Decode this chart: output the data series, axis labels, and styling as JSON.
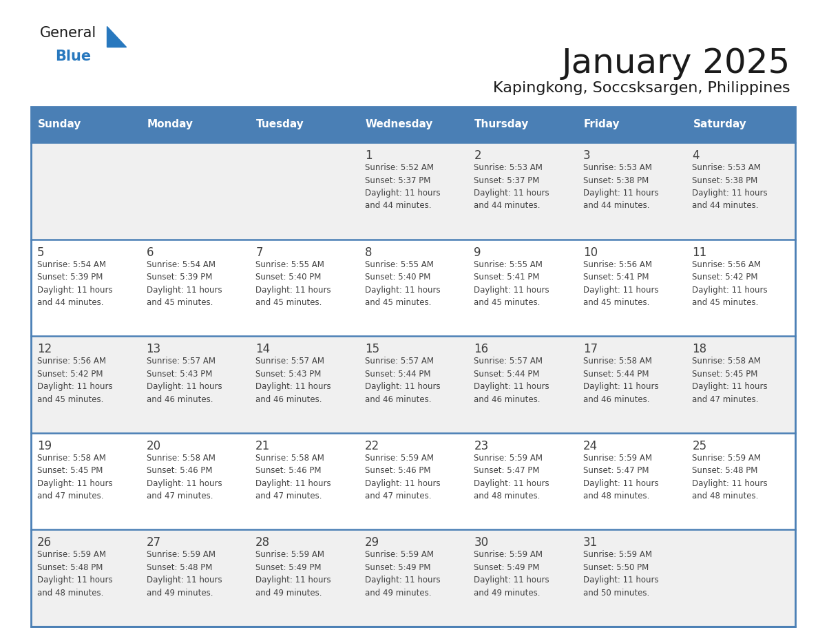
{
  "title": "January 2025",
  "subtitle": "Kapingkong, Soccsksargen, Philippines",
  "days_of_week": [
    "Sunday",
    "Monday",
    "Tuesday",
    "Wednesday",
    "Thursday",
    "Friday",
    "Saturday"
  ],
  "header_bg": "#4a7fb5",
  "header_text_color": "#ffffff",
  "cell_bg_light": "#f0f0f0",
  "cell_bg_white": "#ffffff",
  "row_line_color": "#4a7fb5",
  "text_color": "#404040",
  "title_color": "#1a1a1a",
  "logo_general_color": "#1a1a1a",
  "logo_blue_color": "#2878be",
  "weeks": [
    [
      {
        "day": null,
        "info": null
      },
      {
        "day": null,
        "info": null
      },
      {
        "day": null,
        "info": null
      },
      {
        "day": 1,
        "info": "Sunrise: 5:52 AM\nSunset: 5:37 PM\nDaylight: 11 hours\nand 44 minutes."
      },
      {
        "day": 2,
        "info": "Sunrise: 5:53 AM\nSunset: 5:37 PM\nDaylight: 11 hours\nand 44 minutes."
      },
      {
        "day": 3,
        "info": "Sunrise: 5:53 AM\nSunset: 5:38 PM\nDaylight: 11 hours\nand 44 minutes."
      },
      {
        "day": 4,
        "info": "Sunrise: 5:53 AM\nSunset: 5:38 PM\nDaylight: 11 hours\nand 44 minutes."
      }
    ],
    [
      {
        "day": 5,
        "info": "Sunrise: 5:54 AM\nSunset: 5:39 PM\nDaylight: 11 hours\nand 44 minutes."
      },
      {
        "day": 6,
        "info": "Sunrise: 5:54 AM\nSunset: 5:39 PM\nDaylight: 11 hours\nand 45 minutes."
      },
      {
        "day": 7,
        "info": "Sunrise: 5:55 AM\nSunset: 5:40 PM\nDaylight: 11 hours\nand 45 minutes."
      },
      {
        "day": 8,
        "info": "Sunrise: 5:55 AM\nSunset: 5:40 PM\nDaylight: 11 hours\nand 45 minutes."
      },
      {
        "day": 9,
        "info": "Sunrise: 5:55 AM\nSunset: 5:41 PM\nDaylight: 11 hours\nand 45 minutes."
      },
      {
        "day": 10,
        "info": "Sunrise: 5:56 AM\nSunset: 5:41 PM\nDaylight: 11 hours\nand 45 minutes."
      },
      {
        "day": 11,
        "info": "Sunrise: 5:56 AM\nSunset: 5:42 PM\nDaylight: 11 hours\nand 45 minutes."
      }
    ],
    [
      {
        "day": 12,
        "info": "Sunrise: 5:56 AM\nSunset: 5:42 PM\nDaylight: 11 hours\nand 45 minutes."
      },
      {
        "day": 13,
        "info": "Sunrise: 5:57 AM\nSunset: 5:43 PM\nDaylight: 11 hours\nand 46 minutes."
      },
      {
        "day": 14,
        "info": "Sunrise: 5:57 AM\nSunset: 5:43 PM\nDaylight: 11 hours\nand 46 minutes."
      },
      {
        "day": 15,
        "info": "Sunrise: 5:57 AM\nSunset: 5:44 PM\nDaylight: 11 hours\nand 46 minutes."
      },
      {
        "day": 16,
        "info": "Sunrise: 5:57 AM\nSunset: 5:44 PM\nDaylight: 11 hours\nand 46 minutes."
      },
      {
        "day": 17,
        "info": "Sunrise: 5:58 AM\nSunset: 5:44 PM\nDaylight: 11 hours\nand 46 minutes."
      },
      {
        "day": 18,
        "info": "Sunrise: 5:58 AM\nSunset: 5:45 PM\nDaylight: 11 hours\nand 47 minutes."
      }
    ],
    [
      {
        "day": 19,
        "info": "Sunrise: 5:58 AM\nSunset: 5:45 PM\nDaylight: 11 hours\nand 47 minutes."
      },
      {
        "day": 20,
        "info": "Sunrise: 5:58 AM\nSunset: 5:46 PM\nDaylight: 11 hours\nand 47 minutes."
      },
      {
        "day": 21,
        "info": "Sunrise: 5:58 AM\nSunset: 5:46 PM\nDaylight: 11 hours\nand 47 minutes."
      },
      {
        "day": 22,
        "info": "Sunrise: 5:59 AM\nSunset: 5:46 PM\nDaylight: 11 hours\nand 47 minutes."
      },
      {
        "day": 23,
        "info": "Sunrise: 5:59 AM\nSunset: 5:47 PM\nDaylight: 11 hours\nand 48 minutes."
      },
      {
        "day": 24,
        "info": "Sunrise: 5:59 AM\nSunset: 5:47 PM\nDaylight: 11 hours\nand 48 minutes."
      },
      {
        "day": 25,
        "info": "Sunrise: 5:59 AM\nSunset: 5:48 PM\nDaylight: 11 hours\nand 48 minutes."
      }
    ],
    [
      {
        "day": 26,
        "info": "Sunrise: 5:59 AM\nSunset: 5:48 PM\nDaylight: 11 hours\nand 48 minutes."
      },
      {
        "day": 27,
        "info": "Sunrise: 5:59 AM\nSunset: 5:48 PM\nDaylight: 11 hours\nand 49 minutes."
      },
      {
        "day": 28,
        "info": "Sunrise: 5:59 AM\nSunset: 5:49 PM\nDaylight: 11 hours\nand 49 minutes."
      },
      {
        "day": 29,
        "info": "Sunrise: 5:59 AM\nSunset: 5:49 PM\nDaylight: 11 hours\nand 49 minutes."
      },
      {
        "day": 30,
        "info": "Sunrise: 5:59 AM\nSunset: 5:49 PM\nDaylight: 11 hours\nand 49 minutes."
      },
      {
        "day": 31,
        "info": "Sunrise: 5:59 AM\nSunset: 5:50 PM\nDaylight: 11 hours\nand 50 minutes."
      },
      {
        "day": null,
        "info": null
      }
    ]
  ]
}
